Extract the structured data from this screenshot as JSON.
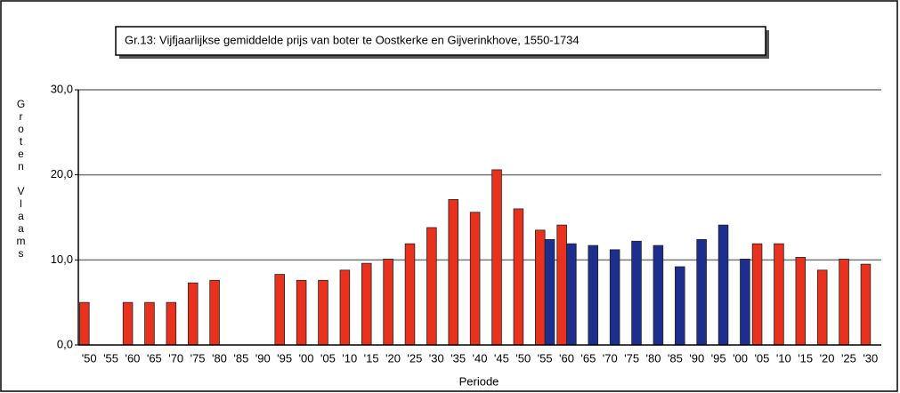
{
  "chart_data": {
    "type": "bar",
    "title": "Gr.13: Vijfjaarlijkse gemiddelde prijs van boter te Oostkerke en Gijverinkhove, 1550-1734",
    "x_label": "Periode",
    "y_label": "Groten Vlaams",
    "categories": [
      "'50",
      "'55",
      "'60",
      "'65",
      "'70",
      "'75",
      "'80",
      "'85",
      "'90",
      "'95",
      "'00",
      "'05",
      "'10",
      "'15",
      "'20",
      "'25",
      "'30",
      "'35",
      "'40",
      "'45",
      "'50",
      "'55",
      "'60",
      "'65",
      "'70",
      "'75",
      "'80",
      "'85",
      "'90",
      "'95",
      "'00",
      "'05",
      "'10",
      "'15",
      "'20",
      "'25",
      "'30"
    ],
    "series": [
      {
        "color": "#e8321e",
        "values": [
          5.0,
          null,
          5.0,
          5.0,
          5.0,
          7.3,
          7.6,
          null,
          null,
          8.3,
          7.6,
          7.6,
          8.8,
          9.6,
          10.1,
          11.9,
          13.8,
          17.1,
          15.6,
          20.6,
          16.0,
          13.5,
          14.1,
          null,
          null,
          null,
          null,
          null,
          null,
          null,
          null,
          11.9,
          11.9,
          10.3,
          8.8,
          10.1,
          9.5
        ]
      },
      {
        "color": "#1c2f8f",
        "values": [
          null,
          null,
          null,
          null,
          null,
          null,
          null,
          null,
          null,
          null,
          null,
          null,
          null,
          null,
          null,
          null,
          null,
          null,
          null,
          null,
          null,
          12.4,
          11.9,
          11.7,
          11.2,
          12.2,
          11.7,
          9.2,
          12.4,
          14.1,
          10.1,
          null,
          null,
          null,
          null,
          null,
          null
        ]
      }
    ],
    "ylim": [
      0,
      30
    ],
    "yticks": [
      {
        "value": 0,
        "label": "0,0"
      },
      {
        "value": 10,
        "label": "10,0"
      },
      {
        "value": 20,
        "label": "20,0"
      },
      {
        "value": 30,
        "label": "30,0"
      }
    ],
    "grid": true
  }
}
